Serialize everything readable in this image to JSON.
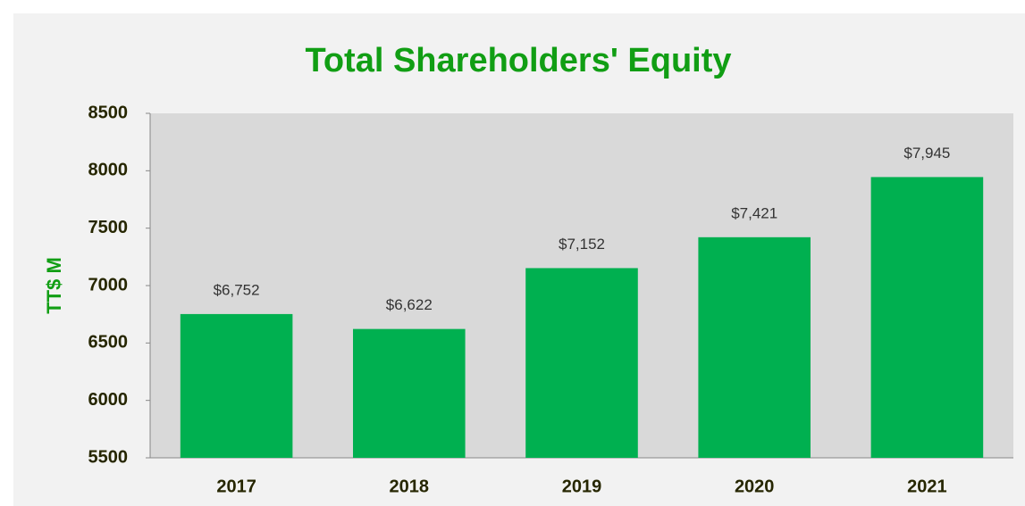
{
  "chart_data": {
    "type": "bar",
    "title": "Total Shareholders' Equity",
    "y_label": "TT$ M",
    "categories": [
      "2017",
      "2018",
      "2019",
      "2020",
      "2021"
    ],
    "values": [
      6752,
      6622,
      7152,
      7421,
      7945
    ],
    "value_labels": [
      "$6,752",
      "$6,622",
      "$7,152",
      "$7,421",
      "$7,945"
    ],
    "color": "#00b050",
    "ylim": [
      5500,
      8500
    ],
    "yticks": [
      5500,
      6000,
      6500,
      7000,
      7500,
      8000,
      8500
    ],
    "grid": false
  }
}
